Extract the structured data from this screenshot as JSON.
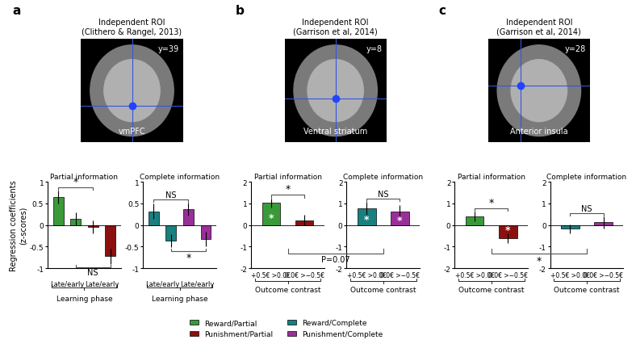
{
  "panels": [
    {
      "letter": "a",
      "roi_title": "Independent ROI\n(Clithero & Rangel, 2013)",
      "region": "vmPFC",
      "slice": "y=39"
    },
    {
      "letter": "b",
      "roi_title": "Independent ROI\n(Garrison et al, 2014)",
      "region": "Ventral striatum",
      "slice": "y=8"
    },
    {
      "letter": "c",
      "roi_title": "Independent ROI\n(Garrison et al, 2014)",
      "region": "Anterior insula",
      "slice": "y=28"
    }
  ],
  "ylabel": "Regression coefficients\n(z-scores)",
  "legend_entries": [
    {
      "name": "Reward/Partial",
      "color": "#3a9a3a"
    },
    {
      "name": "Punishment/Partial",
      "color": "#8b1010"
    },
    {
      "name": "Reward/Complete",
      "color": "#1a7f7f"
    },
    {
      "name": "Punishment/Complete",
      "color": "#9a2f9a"
    }
  ],
  "cross_comparisons": [
    {
      "charts": [
        2,
        3
      ],
      "label": "P=0.07"
    },
    {
      "charts": [
        4,
        5
      ],
      "label": "*"
    }
  ],
  "chart_data": [
    {
      "type": "bar",
      "title": "Partial information",
      "categories": [
        null,
        null,
        null,
        null
      ],
      "group_labels": [
        "Late/early",
        "Late/early"
      ],
      "xlabel": "Learning phase",
      "values": [
        0.65,
        0.15,
        -0.05,
        -0.72
      ],
      "errors": [
        0.15,
        0.15,
        0.15,
        0.18
      ],
      "colors": [
        "#3a9a3a",
        "#3a9a3a",
        "#8b1010",
        "#8b1010"
      ],
      "bar_marks": [
        null,
        null,
        null,
        null
      ],
      "comparisons": [
        {
          "between": [
            0,
            2
          ],
          "side": "above",
          "label": "*"
        },
        {
          "between": [
            1,
            3
          ],
          "side": "below",
          "label": "NS"
        }
      ],
      "ylim": [
        -1,
        1
      ],
      "yticks": [
        -1,
        -0.5,
        0,
        0.5,
        1
      ]
    },
    {
      "type": "bar",
      "title": "Complete information",
      "categories": [
        null,
        null,
        null,
        null
      ],
      "group_labels": [
        "Late/early",
        "Late/early"
      ],
      "xlabel": "Learning phase",
      "values": [
        0.32,
        -0.37,
        0.37,
        -0.33
      ],
      "errors": [
        0.18,
        0.15,
        0.15,
        0.17
      ],
      "colors": [
        "#1a7f7f",
        "#1a7f7f",
        "#9a2f9a",
        "#9a2f9a"
      ],
      "bar_marks": [
        null,
        null,
        null,
        null
      ],
      "comparisons": [
        {
          "between": [
            0,
            2
          ],
          "side": "above",
          "label": "NS"
        },
        {
          "between": [
            1,
            3
          ],
          "side": "below",
          "label": "*"
        }
      ],
      "ylim": [
        -1,
        1
      ],
      "yticks": [
        -1,
        -0.5,
        0,
        0.5,
        1
      ]
    },
    {
      "type": "bar",
      "title": "Partial information",
      "categories": [
        "+0.5€ >0.0€",
        "0.0€ >−0.5€"
      ],
      "xlabel": "Outcome contrast",
      "values": [
        1.02,
        0.22
      ],
      "errors": [
        0.22,
        0.25
      ],
      "colors": [
        "#3a9a3a",
        "#8b1010"
      ],
      "bar_marks": [
        "*",
        null
      ],
      "comparisons": [
        {
          "between": [
            0,
            1
          ],
          "side": "above",
          "label": "*"
        }
      ],
      "ylim": [
        -2,
        2
      ],
      "yticks": [
        -2,
        -1,
        0,
        1,
        2
      ]
    },
    {
      "type": "bar",
      "title": "Complete information",
      "categories": [
        "+0.5€ >0.0€",
        "0.0€ >−0.5€"
      ],
      "xlabel": "Outcome contrast",
      "values": [
        0.78,
        0.62
      ],
      "errors": [
        0.3,
        0.3
      ],
      "colors": [
        "#1a7f7f",
        "#9a2f9a"
      ],
      "bar_marks": [
        "*",
        "*"
      ],
      "comparisons": [
        {
          "between": [
            0,
            1
          ],
          "side": "above",
          "label": "NS"
        }
      ],
      "ylim": [
        -2,
        2
      ],
      "yticks": [
        -2,
        -1,
        0,
        1,
        2
      ]
    },
    {
      "type": "bar",
      "title": "Partial information",
      "categories": [
        "+0.5€ >0.0€",
        "0.0€ >−0.5€"
      ],
      "xlabel": "Outcome contrast",
      "values": [
        0.4,
        -0.62
      ],
      "errors": [
        0.22,
        0.22
      ],
      "colors": [
        "#3a9a3a",
        "#8b1010"
      ],
      "bar_marks": [
        null,
        "*"
      ],
      "comparisons": [
        {
          "between": [
            0,
            1
          ],
          "side": "above",
          "label": "*"
        }
      ],
      "ylim": [
        -2,
        2
      ],
      "yticks": [
        -2,
        -1,
        0,
        1,
        2
      ]
    },
    {
      "type": "bar",
      "title": "Complete information",
      "categories": [
        "+0.5€ >0.0€",
        "0.0€ >−0.5€"
      ],
      "xlabel": "Outcome contrast",
      "values": [
        -0.18,
        0.12
      ],
      "errors": [
        0.2,
        0.28
      ],
      "colors": [
        "#1a7f7f",
        "#9a2f9a"
      ],
      "bar_marks": [
        null,
        null
      ],
      "comparisons": [
        {
          "between": [
            0,
            1
          ],
          "side": "above",
          "label": "NS"
        }
      ],
      "ylim": [
        -2,
        2
      ],
      "yticks": [
        -2,
        -1,
        0,
        1,
        2
      ]
    }
  ]
}
